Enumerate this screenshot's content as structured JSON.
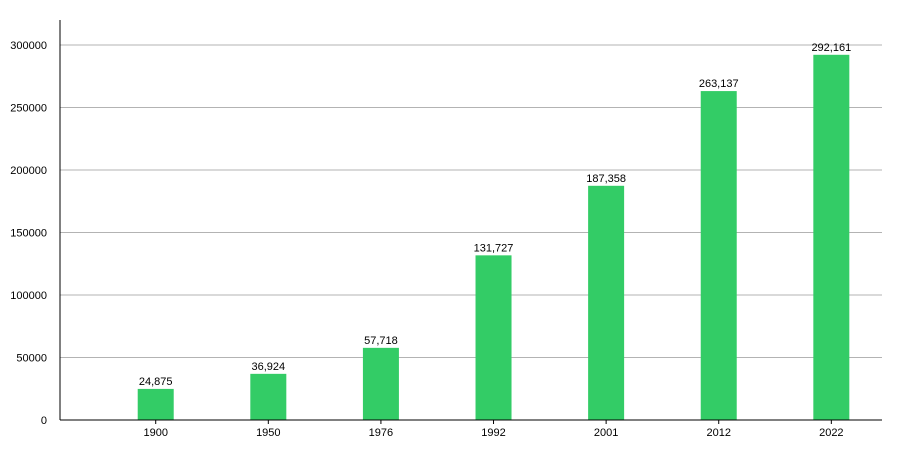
{
  "chart_data": {
    "type": "bar",
    "title": "",
    "xlabel": "",
    "ylabel": "",
    "categories": [
      "1900",
      "1950",
      "1976",
      "1992",
      "2001",
      "2012",
      "2022"
    ],
    "values": [
      24875,
      36924,
      57718,
      131727,
      187358,
      263137,
      292161
    ],
    "data_labels": [
      "24,875",
      "36,924",
      "57,718",
      "131,727",
      "187,358",
      "263,137",
      "292,161"
    ],
    "ylim": [
      0,
      300000
    ],
    "yticks": [
      0,
      50000,
      100000,
      150000,
      200000,
      250000,
      300000
    ],
    "ytick_labels": [
      "0",
      "50000",
      "100000",
      "150000",
      "200000",
      "250000",
      "300000"
    ],
    "grid": true,
    "legend": "none",
    "bar_color": "#33cc66",
    "grid_color": "#b3b3b3",
    "axis_color": "#000000"
  }
}
